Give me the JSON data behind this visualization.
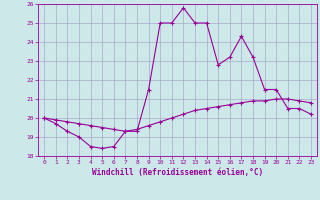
{
  "xlabel": "Windchill (Refroidissement éolien,°C)",
  "hours": [
    0,
    1,
    2,
    3,
    4,
    5,
    6,
    7,
    8,
    9,
    10,
    11,
    12,
    13,
    14,
    15,
    16,
    17,
    18,
    19,
    20,
    21,
    22,
    23
  ],
  "line1": [
    20.0,
    19.7,
    19.3,
    19.0,
    18.5,
    18.4,
    18.5,
    19.3,
    19.3,
    21.5,
    25.0,
    25.0,
    25.8,
    25.0,
    25.0,
    22.8,
    23.2,
    24.3,
    23.2,
    21.5,
    21.5,
    20.5,
    20.5,
    20.2
  ],
  "line2": [
    20.0,
    19.9,
    19.8,
    19.7,
    19.6,
    19.5,
    19.4,
    19.3,
    19.4,
    19.6,
    19.8,
    20.0,
    20.2,
    20.4,
    20.5,
    20.6,
    20.7,
    20.8,
    20.9,
    20.9,
    21.0,
    21.0,
    20.9,
    20.8
  ],
  "line_color": "#990099",
  "background_color": "#cce8e8",
  "grid_color": "#aaaacc",
  "ylim": [
    18,
    26
  ],
  "yticks": [
    18,
    19,
    20,
    21,
    22,
    23,
    24,
    25,
    26
  ],
  "xticks": [
    0,
    1,
    2,
    3,
    4,
    5,
    6,
    7,
    8,
    9,
    10,
    11,
    12,
    13,
    14,
    15,
    16,
    17,
    18,
    19,
    20,
    21,
    22,
    23
  ],
  "marker": "+",
  "markersize": 3,
  "linewidth": 0.8,
  "tick_fontsize": 4.5,
  "label_fontsize": 5.5
}
